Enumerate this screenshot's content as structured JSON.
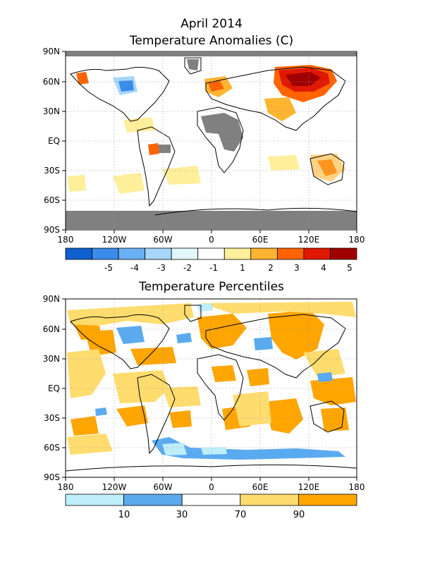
{
  "header": {
    "date": "April 2014",
    "panel1_title": "Temperature Anomalies (C)",
    "panel2_title": "Temperature Percentiles"
  },
  "axes": {
    "lat_labels": [
      "90N",
      "60N",
      "30N",
      "EQ",
      "30S",
      "60S",
      "90S"
    ],
    "lon_labels": [
      "180",
      "120W",
      "60W",
      "0",
      "60E",
      "120E",
      "180"
    ]
  },
  "legend_anomaly": {
    "colors": [
      "#1060d0",
      "#3a8ce8",
      "#6ab0f4",
      "#a6d6fa",
      "#e2f6fc",
      "#ffffff",
      "#ffee9a",
      "#ffb432",
      "#ff6400",
      "#e01800",
      "#a00000"
    ],
    "labels": [
      "-5",
      "-4",
      "-3",
      "-2",
      "-1",
      "1",
      "2",
      "3",
      "4",
      "5"
    ]
  },
  "legend_percentile": {
    "colors": [
      "#bdeefa",
      "#5aaaf0",
      "#ffffff",
      "#ffdc6e",
      "#ffa500"
    ],
    "labels": [
      "10",
      "30",
      "70",
      "90"
    ]
  },
  "colors": {
    "no_data": "#808080",
    "land_outline": "#000000",
    "grid": "#999999"
  }
}
